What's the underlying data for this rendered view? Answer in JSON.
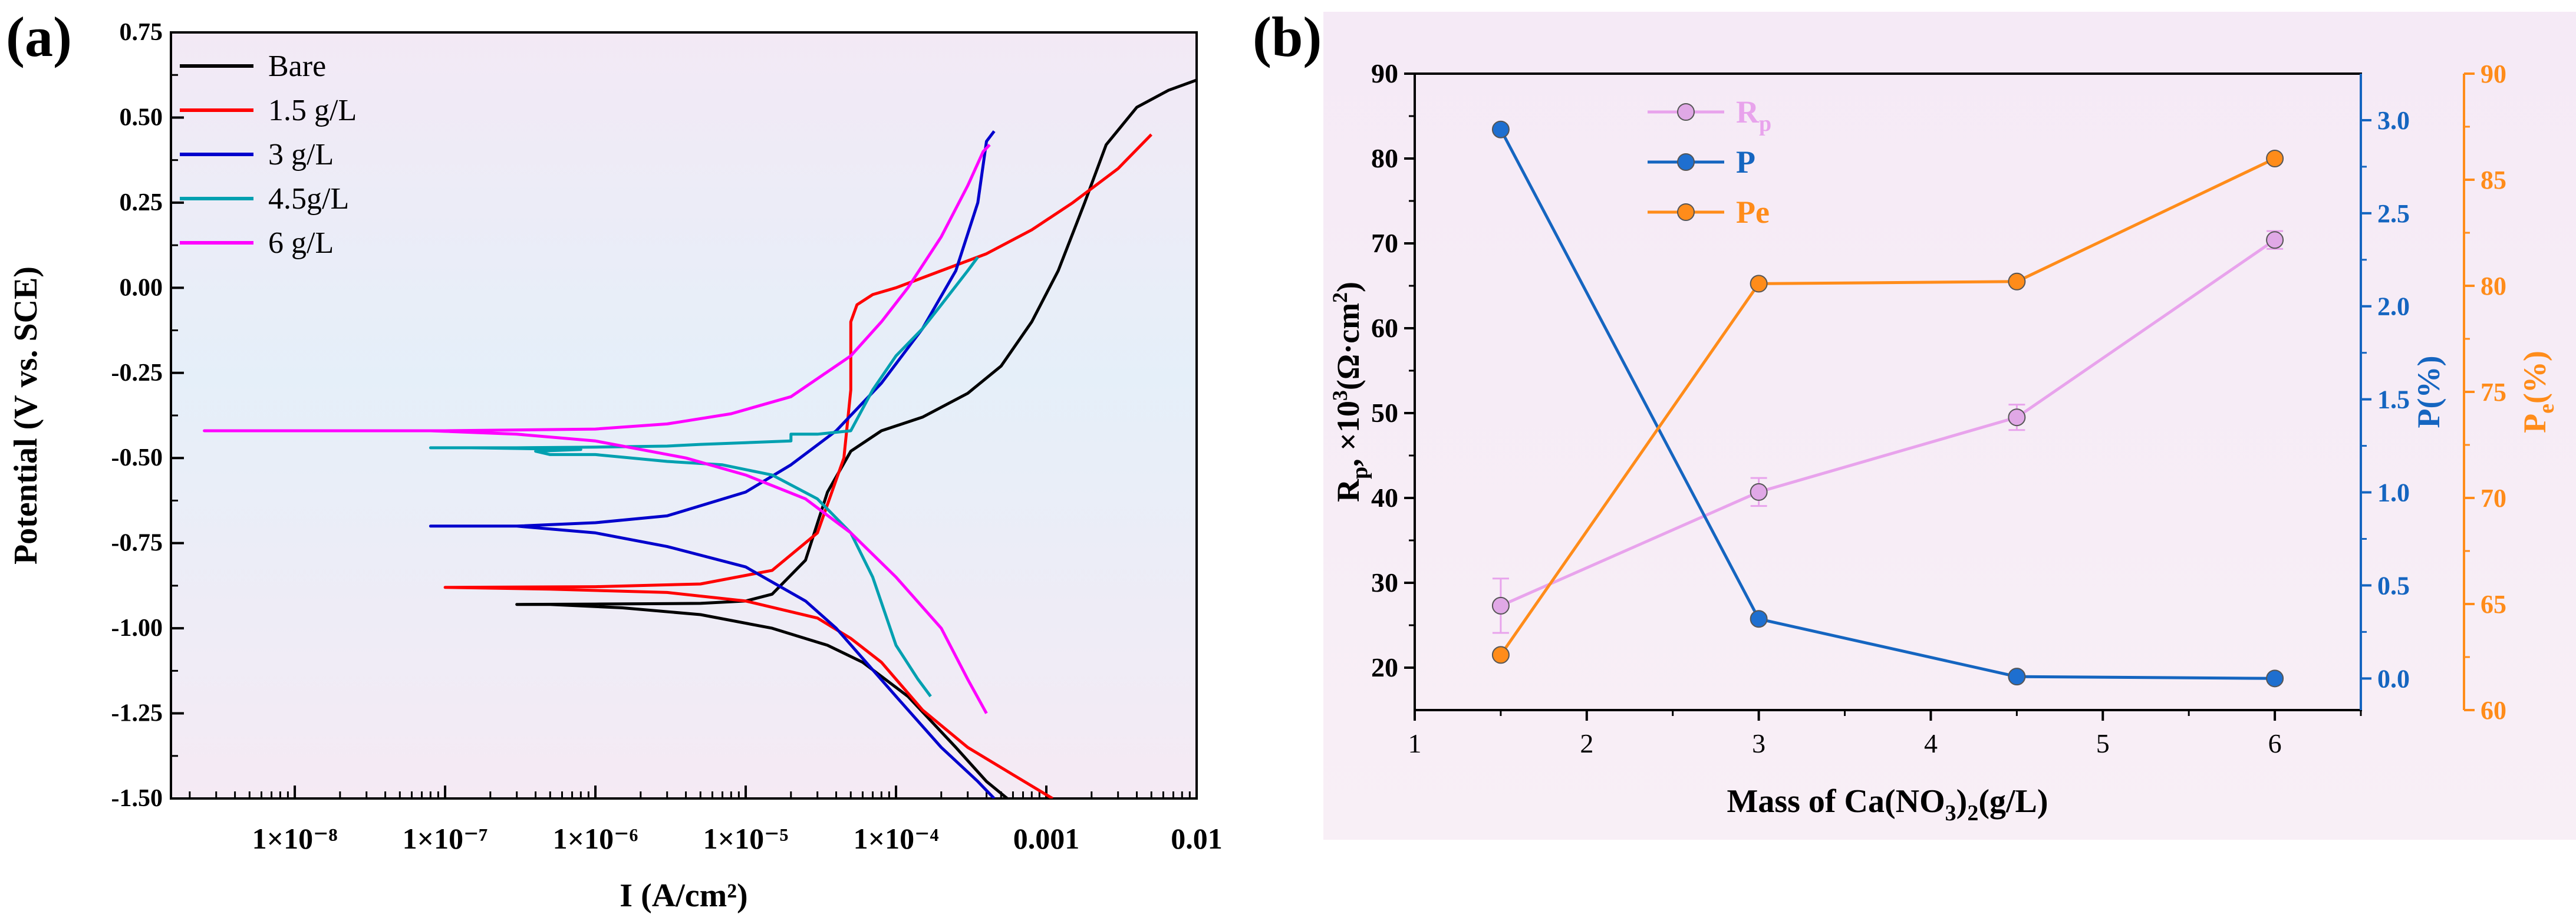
{
  "chart_data": [
    {
      "panel_label": "(a)",
      "type": "line",
      "xscale": "log",
      "xlabel": "I (A/cm²)",
      "ylabel": "Potential (V vs. SCE)",
      "xlim": [
        1.5e-09,
        0.01
      ],
      "ylim": [
        -1.5,
        0.75
      ],
      "xticks": [
        {
          "v": 1e-08,
          "label": "1×10⁻⁸"
        },
        {
          "v": 1e-07,
          "label": "1×10⁻⁷"
        },
        {
          "v": 1e-06,
          "label": "1×10⁻⁶"
        },
        {
          "v": 1e-05,
          "label": "1×10⁻⁵"
        },
        {
          "v": 0.0001,
          "label": "1×10⁻⁴"
        },
        {
          "v": 0.001,
          "label": "0.001"
        },
        {
          "v": 0.01,
          "label": "0.01"
        }
      ],
      "yticks": [
        {
          "v": 0.75,
          "label": "0.75"
        },
        {
          "v": 0.5,
          "label": "0.50"
        },
        {
          "v": 0.25,
          "label": "0.25"
        },
        {
          "v": 0.0,
          "label": "0.00"
        },
        {
          "v": -0.25,
          "label": "-0.25"
        },
        {
          "v": -0.5,
          "label": "-0.50"
        },
        {
          "v": -0.75,
          "label": "-0.75"
        },
        {
          "v": -1.0,
          "label": "-1.00"
        },
        {
          "v": -1.25,
          "label": "-1.25"
        },
        {
          "v": -1.5,
          "label": "-1.50"
        }
      ],
      "legend_position": "top-left",
      "series": [
        {
          "name": "Bare",
          "color": "#000000",
          "points": [
            [
              0.00055,
              -1.5
            ],
            [
              0.0004,
              -1.45
            ],
            [
              0.00025,
              -1.35
            ],
            [
              0.00012,
              -1.2
            ],
            [
              6e-05,
              -1.1
            ],
            [
              3.5e-05,
              -1.05
            ],
            [
              1.5e-05,
              -1.0
            ],
            [
              5e-06,
              -0.96
            ],
            [
              1.5e-06,
              -0.94
            ],
            [
              5e-07,
              -0.93
            ],
            [
              3e-07,
              -0.93
            ],
            [
              1e-06,
              -0.929
            ],
            [
              5e-06,
              -0.927
            ],
            [
              1e-05,
              -0.92
            ],
            [
              1.5e-05,
              -0.9
            ],
            [
              2.5e-05,
              -0.8
            ],
            [
              3.5e-05,
              -0.6
            ],
            [
              5e-05,
              -0.48
            ],
            [
              8e-05,
              -0.42
            ],
            [
              0.00015,
              -0.38
            ],
            [
              0.0003,
              -0.31
            ],
            [
              0.0005,
              -0.23
            ],
            [
              0.0008,
              -0.1
            ],
            [
              0.0012,
              0.05
            ],
            [
              0.0018,
              0.25
            ],
            [
              0.0025,
              0.42
            ],
            [
              0.004,
              0.53
            ],
            [
              0.0065,
              0.58
            ],
            [
              0.01,
              0.61
            ]
          ]
        },
        {
          "name": "1.5 g/L",
          "color": "#ff0000",
          "points": [
            [
              0.0011,
              -1.5
            ],
            [
              0.0006,
              -1.43
            ],
            [
              0.0003,
              -1.35
            ],
            [
              0.00015,
              -1.24
            ],
            [
              8e-05,
              -1.1
            ],
            [
              5e-05,
              -1.03
            ],
            [
              3e-05,
              -0.97
            ],
            [
              1e-05,
              -0.92
            ],
            [
              3e-06,
              -0.895
            ],
            [
              5e-07,
              -0.885
            ],
            [
              1e-07,
              -0.88
            ],
            [
              1e-06,
              -0.878
            ],
            [
              5e-06,
              -0.87
            ],
            [
              1.5e-05,
              -0.83
            ],
            [
              3e-05,
              -0.72
            ],
            [
              4.5e-05,
              -0.5
            ],
            [
              5e-05,
              -0.3
            ],
            [
              5e-05,
              -0.1
            ],
            [
              5.5e-05,
              -0.05
            ],
            [
              7e-05,
              -0.02
            ],
            [
              0.0001,
              0.0
            ],
            [
              0.0002,
              0.05
            ],
            [
              0.0004,
              0.1
            ],
            [
              0.0008,
              0.17
            ],
            [
              0.0015,
              0.25
            ],
            [
              0.003,
              0.35
            ],
            [
              0.005,
              0.45
            ]
          ]
        },
        {
          "name": "3 g/L",
          "color": "#0000cc",
          "points": [
            [
              0.00045,
              -1.5
            ],
            [
              0.00035,
              -1.45
            ],
            [
              0.0002,
              -1.35
            ],
            [
              0.0001,
              -1.2
            ],
            [
              4e-05,
              -1.0
            ],
            [
              2.5e-05,
              -0.92
            ],
            [
              1e-05,
              -0.82
            ],
            [
              3e-06,
              -0.76
            ],
            [
              1e-06,
              -0.72
            ],
            [
              3e-07,
              -0.7
            ],
            [
              8e-08,
              -0.7
            ],
            [
              3e-07,
              -0.7
            ],
            [
              1e-06,
              -0.69
            ],
            [
              3e-06,
              -0.67
            ],
            [
              1e-05,
              -0.6
            ],
            [
              2e-05,
              -0.52
            ],
            [
              4e-05,
              -0.42
            ],
            [
              8e-05,
              -0.28
            ],
            [
              0.00015,
              -0.12
            ],
            [
              0.00025,
              0.05
            ],
            [
              0.00035,
              0.25
            ],
            [
              0.0004,
              0.43
            ],
            [
              0.00045,
              0.46
            ]
          ]
        },
        {
          "name": "4.5g/L",
          "color": "#00a0b0",
          "points": [
            [
              0.00017,
              -1.2
            ],
            [
              0.00014,
              -1.15
            ],
            [
              0.0001,
              -1.05
            ],
            [
              7e-05,
              -0.85
            ],
            [
              5e-05,
              -0.72
            ],
            [
              3e-05,
              -0.62
            ],
            [
              1.5e-05,
              -0.55
            ],
            [
              7e-06,
              -0.52
            ],
            [
              3e-06,
              -0.51
            ],
            [
              1e-06,
              -0.49
            ],
            [
              5e-07,
              -0.49
            ],
            [
              4e-07,
              -0.48
            ],
            [
              8e-07,
              -0.475
            ],
            [
              1.5e-07,
              -0.47
            ],
            [
              8e-08,
              -0.47
            ],
            [
              3e-07,
              -0.47
            ],
            [
              1e-06,
              -0.468
            ],
            [
              3e-06,
              -0.465
            ],
            [
              5e-06,
              -0.46
            ],
            [
              1e-05,
              -0.455
            ],
            [
              2e-05,
              -0.45
            ],
            [
              2e-05,
              -0.43
            ],
            [
              3e-05,
              -0.43
            ],
            [
              5e-05,
              -0.42
            ],
            [
              7e-05,
              -0.3
            ],
            [
              0.0001,
              -0.2
            ],
            [
              0.00015,
              -0.12
            ],
            [
              0.0002,
              -0.05
            ],
            [
              0.0003,
              0.05
            ],
            [
              0.00035,
              0.09
            ]
          ]
        },
        {
          "name": "6 g/L",
          "color": "#ff00ff",
          "points": [
            [
              0.0004,
              -1.25
            ],
            [
              0.0003,
              -1.15
            ],
            [
              0.0002,
              -1.0
            ],
            [
              0.0001,
              -0.85
            ],
            [
              5e-05,
              -0.72
            ],
            [
              2.5e-05,
              -0.62
            ],
            [
              1e-05,
              -0.55
            ],
            [
              4e-06,
              -0.5
            ],
            [
              1e-06,
              -0.45
            ],
            [
              3e-07,
              -0.43
            ],
            [
              8e-08,
              -0.42
            ],
            [
              2.5e-09,
              -0.42
            ],
            [
              1e-07,
              -0.42
            ],
            [
              1e-06,
              -0.415
            ],
            [
              3e-06,
              -0.4
            ],
            [
              8e-06,
              -0.37
            ],
            [
              2e-05,
              -0.32
            ],
            [
              5e-05,
              -0.2
            ],
            [
              8e-05,
              -0.1
            ],
            [
              0.00012,
              0.0
            ],
            [
              0.0002,
              0.15
            ],
            [
              0.0003,
              0.3
            ],
            [
              0.00038,
              0.4
            ],
            [
              0.00042,
              0.42
            ]
          ]
        }
      ]
    },
    {
      "panel_label": "(b)",
      "type": "line",
      "x": [
        1.5,
        3,
        4.5,
        6
      ],
      "xlabel_main": "Mass of Ca(NO",
      "xlabel_sub1": "3",
      "xlabel_mid": ")",
      "xlabel_sub2": "2",
      "xlabel_end": "(g/L)",
      "xlim": [
        1,
        6.5
      ],
      "xticks": [
        {
          "v": 1,
          "label": "1"
        },
        {
          "v": 2,
          "label": "2"
        },
        {
          "v": 3,
          "label": "3"
        },
        {
          "v": 4,
          "label": "4"
        },
        {
          "v": 5,
          "label": "5"
        },
        {
          "v": 6,
          "label": "6"
        }
      ],
      "ylabel_left": {
        "a": "R",
        "sub": "p",
        "b": ", ×10",
        "sup": "3",
        "c": "(Ω·cm",
        "sup2": "2",
        "d": ")"
      },
      "ylim_left": [
        15,
        90
      ],
      "yticks_left": [
        {
          "v": 20,
          "label": "20"
        },
        {
          "v": 30,
          "label": "30"
        },
        {
          "v": 40,
          "label": "40"
        },
        {
          "v": 50,
          "label": "50"
        },
        {
          "v": 60,
          "label": "60"
        },
        {
          "v": 70,
          "label": "70"
        },
        {
          "v": 80,
          "label": "80"
        },
        {
          "v": 90,
          "label": "90"
        }
      ],
      "ylabel_right1": "P(%)",
      "ylim_right1": [
        -0.17,
        3.25
      ],
      "yticks_right1": [
        {
          "v": 0,
          "label": "0.0"
        },
        {
          "v": 0.5,
          "label": "0.5"
        },
        {
          "v": 1,
          "label": "1.0"
        },
        {
          "v": 1.5,
          "label": "1.5"
        },
        {
          "v": 2,
          "label": "2.0"
        },
        {
          "v": 2.5,
          "label": "2.5"
        },
        {
          "v": 3,
          "label": "3.0"
        }
      ],
      "ylabel_right2": {
        "a": "P",
        "sub": "e",
        "b": "(%)"
      },
      "ylim_right2": [
        60,
        90
      ],
      "yticks_right2": [
        {
          "v": 60,
          "label": "60"
        },
        {
          "v": 65,
          "label": "65"
        },
        {
          "v": 70,
          "label": "70"
        },
        {
          "v": 75,
          "label": "75"
        },
        {
          "v": 80,
          "label": "80"
        },
        {
          "v": 85,
          "label": "85"
        },
        {
          "v": 90,
          "label": "90"
        }
      ],
      "legend_position": "top-center",
      "series": [
        {
          "name": "R",
          "name_sub": "p",
          "axis": "left",
          "color": "#e8a3ec",
          "marker_color": "#e0a8e6",
          "values": [
            27.3,
            40.7,
            49.5,
            70.4
          ],
          "errors": [
            6.4,
            3.3,
            3.0,
            2.1
          ]
        },
        {
          "name": "P",
          "name_sub": "",
          "axis": "right1",
          "color": "#1565c0",
          "marker_color": "#1e6fd0",
          "values": [
            2.95,
            0.32,
            0.01,
            0.0
          ]
        },
        {
          "name": "Pe",
          "name_sub": "",
          "axis": "right2",
          "color": "#ff8c1a",
          "marker_color": "#ff8c1a",
          "values": [
            62.6,
            80.1,
            80.2,
            86.0
          ]
        }
      ]
    }
  ]
}
